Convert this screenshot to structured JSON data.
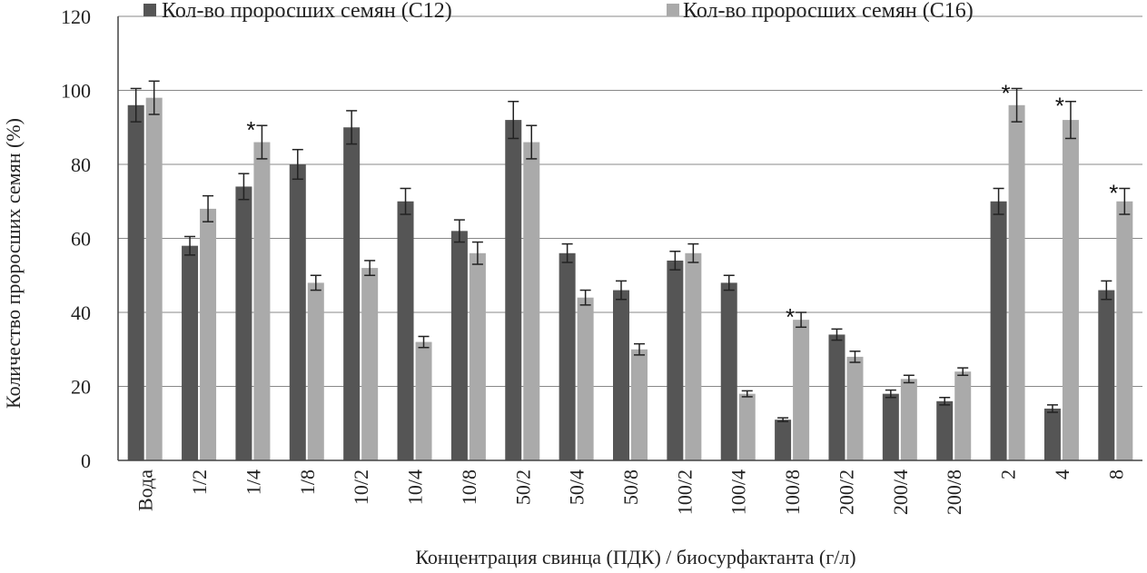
{
  "chart_data": {
    "type": "bar",
    "xlabel": "Концентрация свинца (ПДК) / биосурфактанта (г/л)",
    "ylabel": "Количество проросших семян (%)",
    "ylim": [
      0,
      120
    ],
    "yticks": [
      0,
      20,
      40,
      60,
      80,
      100,
      120
    ],
    "grid": true,
    "legend_position": "top",
    "categories": [
      "Вода",
      "1/2",
      "1/4",
      "1/8",
      "10/2",
      "10/4",
      "10/8",
      "50/2",
      "50/4",
      "50/8",
      "100/2",
      "100/4",
      "100/8",
      "200/2",
      "200/4",
      "200/8",
      "2",
      "4",
      "8"
    ],
    "series": [
      {
        "name": "Кол-во проросших семян (С12)",
        "color": "#555555",
        "values": [
          96,
          58,
          74,
          80,
          90,
          70,
          62,
          92,
          56,
          46,
          54,
          48,
          11,
          34,
          18,
          16,
          70,
          14,
          46
        ],
        "errors": [
          4.5,
          2.5,
          3.5,
          4,
          4.5,
          3.5,
          3,
          5,
          2.5,
          2.5,
          2.5,
          2,
          0.5,
          1.5,
          1,
          1,
          3.5,
          1,
          2.5
        ]
      },
      {
        "name": "Кол-во проросших семян (С16)",
        "color": "#aaaaaa",
        "values": [
          98,
          68,
          86,
          48,
          52,
          32,
          56,
          86,
          44,
          30,
          56,
          18,
          38,
          28,
          22,
          24,
          96,
          92,
          70
        ],
        "errors": [
          4.5,
          3.5,
          4.5,
          2,
          2,
          1.5,
          3,
          4.5,
          2,
          1.5,
          2.5,
          0.8,
          2,
          1.5,
          1,
          1,
          4.5,
          5,
          3.5
        ]
      }
    ],
    "annotations": [
      {
        "category": "1/4",
        "series": 1,
        "text": "*"
      },
      {
        "category": "100/8",
        "series": 1,
        "text": "*"
      },
      {
        "category": "2",
        "series": 1,
        "text": "*"
      },
      {
        "category": "4",
        "series": 1,
        "text": "*"
      },
      {
        "category": "8",
        "series": 1,
        "text": "*"
      }
    ]
  }
}
